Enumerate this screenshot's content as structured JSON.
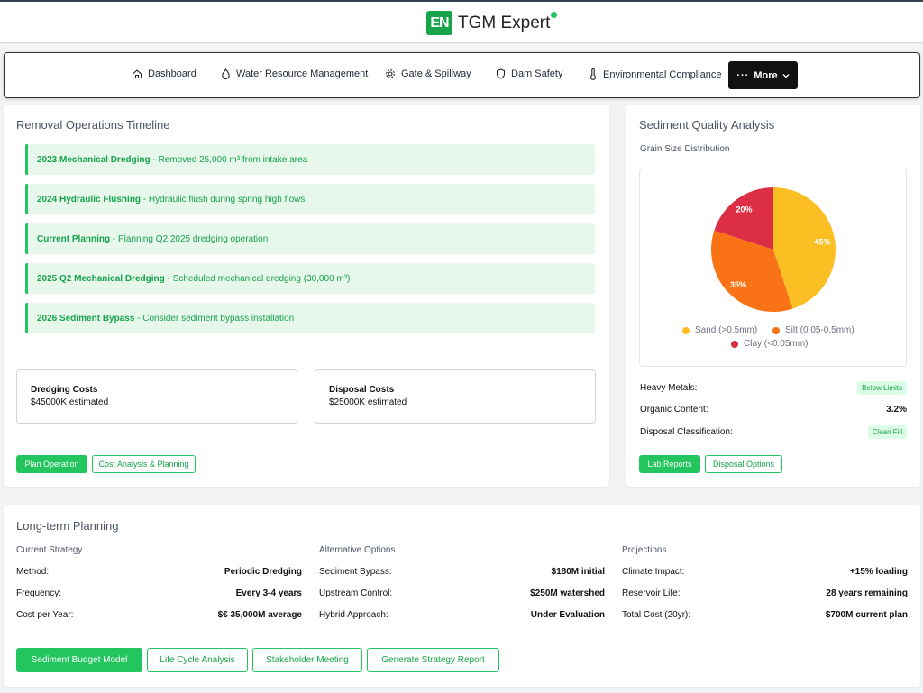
{
  "header": {
    "logo_mark": "EN",
    "app_name": "TGM Expert"
  },
  "nav": {
    "items": [
      {
        "label": "Dashboard",
        "icon": "home-icon"
      },
      {
        "label": "Water Resource Management",
        "icon": "droplet-icon"
      },
      {
        "label": "Gate & Spillway",
        "icon": "gear-icon"
      },
      {
        "label": "Dam Safety",
        "icon": "shield-icon"
      },
      {
        "label": "Environmental Compliance",
        "icon": "thermometer-icon"
      }
    ],
    "more_label": "More"
  },
  "timeline_card": {
    "title": "Removal Operations Timeline",
    "items": [
      {
        "title": "2023 Mechanical Dredging",
        "text": " - Removed 25,000 m³ from intake area"
      },
      {
        "title": "2024 Hydraulic Flushing",
        "text": " - Hydraulic flush during spring high flows"
      },
      {
        "title": "Current Planning",
        "text": " - Planning Q2 2025 dredging operation"
      },
      {
        "title": "2025 Q2 Mechanical Dredging",
        "text": " - Scheduled mechanical dredging (30,000 m³)"
      },
      {
        "title": "2026 Sediment Bypass",
        "text": " - Consider sediment bypass installation"
      }
    ],
    "costs": [
      {
        "title": "Dredging Costs",
        "value": "$45000K estimated"
      },
      {
        "title": "Disposal Costs",
        "value": "$25000K estimated"
      }
    ],
    "buttons": {
      "primary": "Plan Operation",
      "secondary": "Cost Analysis & Planning"
    }
  },
  "sediment_card": {
    "title": "Sediment Quality Analysis",
    "subtitle": "Grain Size Distribution",
    "chart_data": {
      "type": "pie",
      "categories": [
        "Sand (>0.5mm)",
        "Silt (0.05-0.5mm)",
        "Clay (<0.05mm)"
      ],
      "values": [
        45,
        35,
        20
      ],
      "labels": [
        "45%",
        "35%",
        "20%"
      ],
      "colors": [
        "#fbbf24",
        "#f97316",
        "#dc2f45"
      ],
      "legend_position": "bottom"
    },
    "props": [
      {
        "label": "Heavy Metals:",
        "value": "Below Limits",
        "badge": true
      },
      {
        "label": "Organic Content:",
        "value": "3.2%",
        "badge": false
      },
      {
        "label": "Disposal Classification:",
        "value": "Clean Fill",
        "badge": true
      }
    ],
    "buttons": {
      "primary": "Lab Reports",
      "secondary": "Disposal Options"
    }
  },
  "planning_card": {
    "title": "Long-term Planning",
    "columns": [
      {
        "heading": "Current Strategy",
        "rows": [
          {
            "label": "Method:",
            "value": "Periodic Dredging"
          },
          {
            "label": "Frequency:",
            "value": "Every 3-4 years"
          },
          {
            "label": "Cost per Year:",
            "value": "$€ 35,000M average"
          }
        ]
      },
      {
        "heading": "Alternative Options",
        "rows": [
          {
            "label": "Sediment Bypass:",
            "value": "$180M initial"
          },
          {
            "label": "Upstream Control:",
            "value": "$250M watershed"
          },
          {
            "label": "Hybrid Approach:",
            "value": "Under Evaluation"
          }
        ]
      },
      {
        "heading": "Projections",
        "rows": [
          {
            "label": "Climate Impact:",
            "value": "+15% loading"
          },
          {
            "label": "Reservoir Life:",
            "value": "28 years remaining"
          },
          {
            "label": "Total Cost (20yr):",
            "value": "$700M current plan"
          }
        ]
      }
    ],
    "buttons": [
      "Sediment Budget Model",
      "Life Cycle Analysis",
      "Stakeholder Meeting",
      "Generate Strategy Report"
    ]
  }
}
